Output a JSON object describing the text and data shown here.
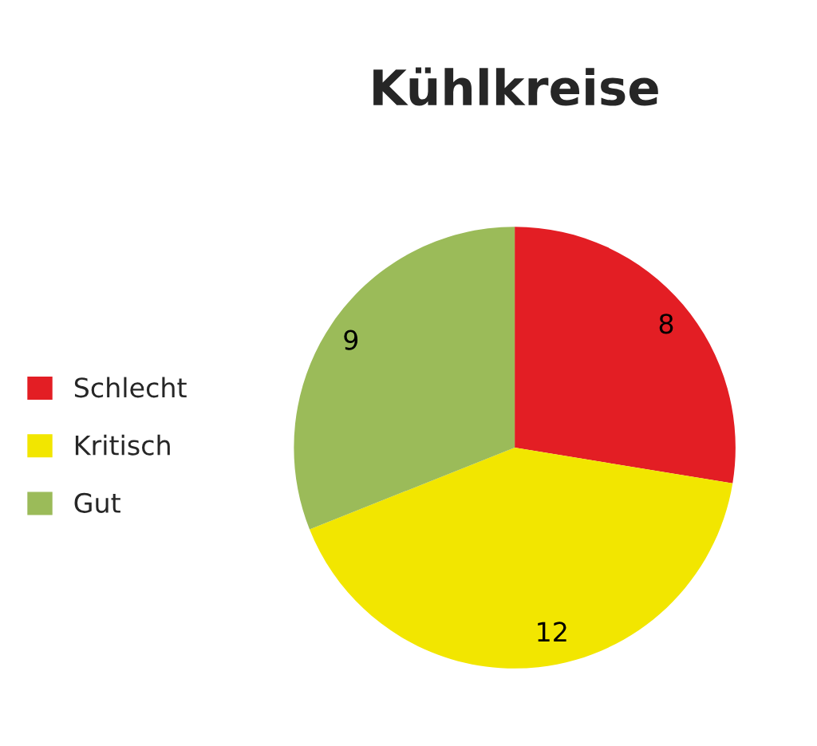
{
  "chart_data": {
    "type": "pie",
    "title": "Kühlkreise",
    "categories": [
      "Schlecht",
      "Kritisch",
      "Gut"
    ],
    "values": [
      8,
      12,
      9
    ],
    "colors": [
      "#e31e24",
      "#f2e600",
      "#9bbb59"
    ],
    "data_labels": true,
    "legend": "left"
  }
}
